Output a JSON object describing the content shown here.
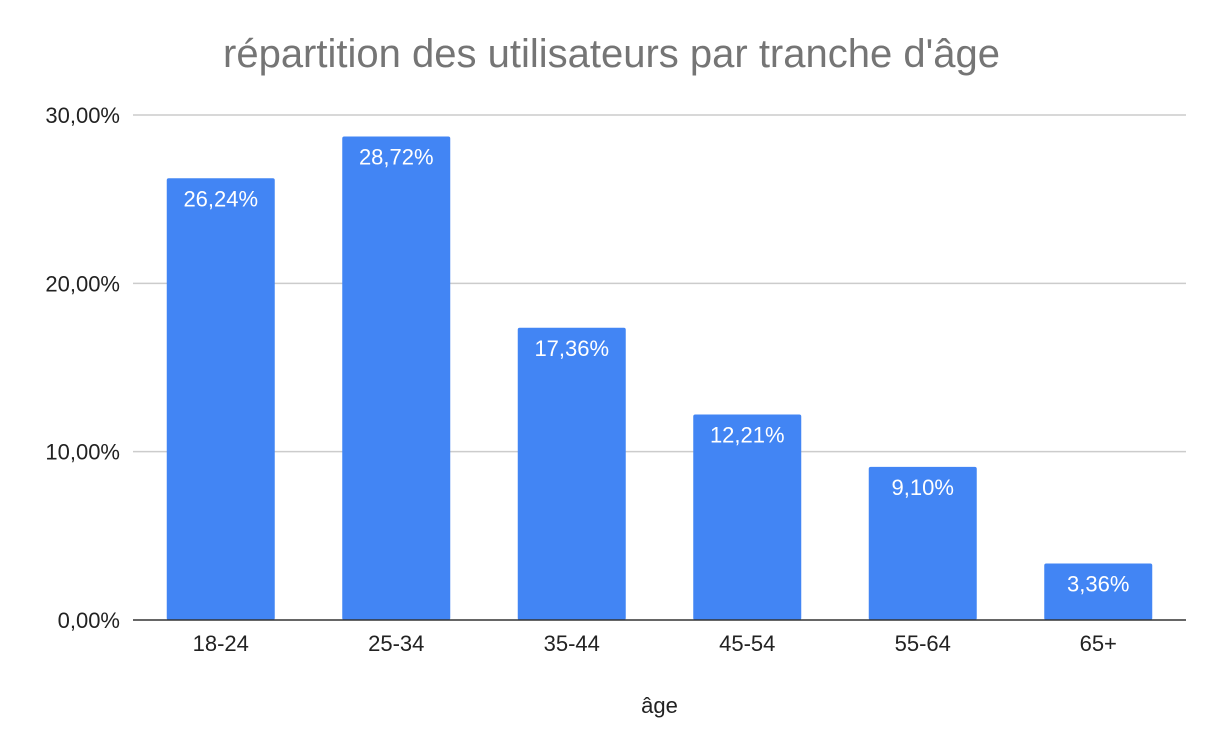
{
  "chart_data": {
    "type": "bar",
    "title": "répartition des utilisateurs par tranche d'âge",
    "xlabel": "âge",
    "ylabel": "",
    "categories": [
      "18-24",
      "25-34",
      "35-44",
      "45-54",
      "55-64",
      "65+"
    ],
    "values": [
      26.24,
      28.72,
      17.36,
      12.21,
      9.1,
      3.36
    ],
    "data_labels": [
      "26,24%",
      "28,72%",
      "17,36%",
      "12,21%",
      "9,10%",
      "3,36%"
    ],
    "ylim": [
      0,
      30
    ],
    "yticks": [
      0,
      10,
      20,
      30
    ],
    "ytick_labels": [
      "0,00%",
      "10,00%",
      "20,00%",
      "30,00%"
    ],
    "grid": true,
    "legend": "none",
    "bar_color": "#4285f4",
    "gridline_color": "#cccccc",
    "title_color": "#757575"
  }
}
